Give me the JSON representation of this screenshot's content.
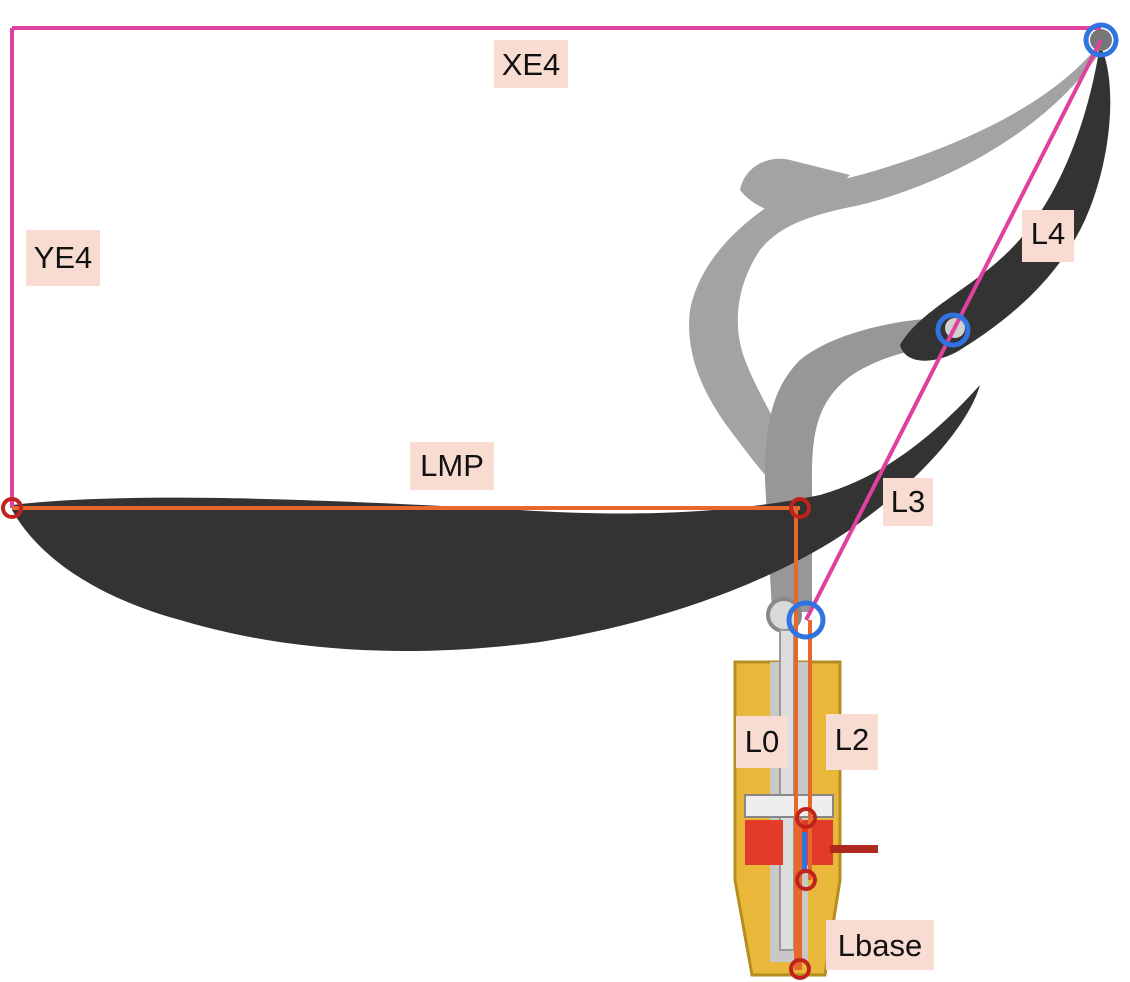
{
  "colors": {
    "background": "#ffffff",
    "dark_link": "#333333",
    "grey_link": "#9a9a9a",
    "base_yellow": "#e9b83a",
    "base_red": "#e23b2a",
    "magenta_dimension": "#e0409e",
    "orange_dimension": "#e8672a",
    "blue_joint": "#2f74e0",
    "red_joint": "#c0221e",
    "label_background": "#f8dcd2"
  },
  "labels": {
    "xe4": "XE4",
    "ye4": "YE4",
    "l4": "L4",
    "l3": "L3",
    "lmp": "LMP",
    "l0": "L0",
    "l2": "L2",
    "lbase": "Lbase"
  },
  "joints": {
    "blue": [
      "top-right-pivot",
      "mid-pivot",
      "base-pivot"
    ],
    "red": [
      "left-tip",
      "lmp-end",
      "upper-base",
      "lower-base",
      "bottom-base"
    ]
  }
}
